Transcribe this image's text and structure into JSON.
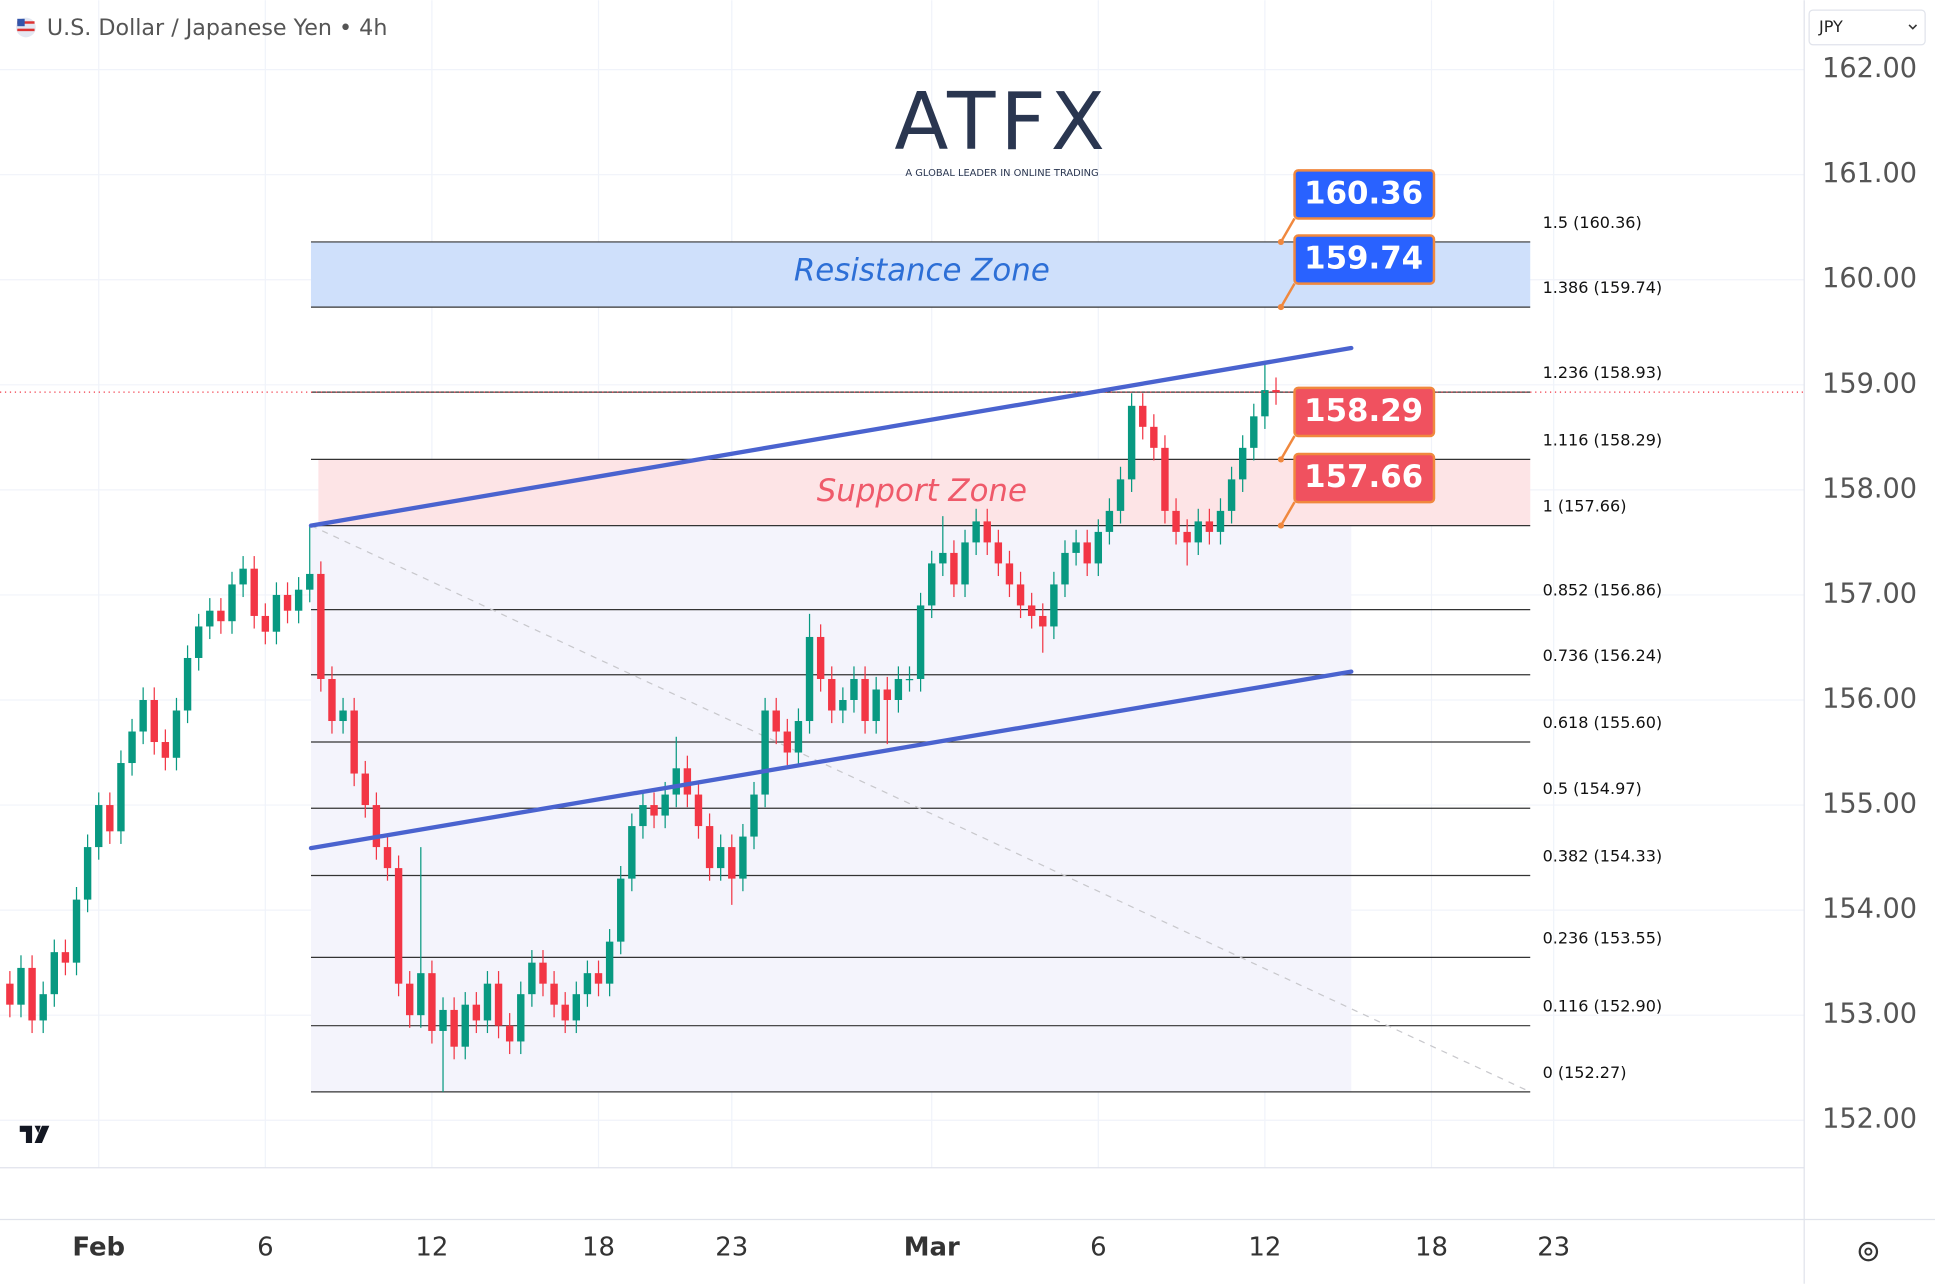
{
  "header": {
    "title": "U.S. Dollar / Japanese Yen • 4h",
    "currency": "JPY"
  },
  "logo": {
    "name": "ATFX",
    "tagline": "A GLOBAL LEADER IN ONLINE TRADING"
  },
  "chart_data": {
    "type": "candlestick",
    "up_color": "#089981",
    "down_color": "#f23645",
    "categories": [
      null,
      null,
      null,
      null,
      null,
      null,
      null,
      null,
      "Feb",
      null,
      null,
      null,
      null,
      null,
      null,
      null,
      null,
      null,
      null,
      null,
      null,
      null,
      null,
      "6",
      null,
      null,
      null,
      null,
      null,
      null,
      null,
      null,
      null,
      null,
      null,
      null,
      null,
      null,
      "12",
      null,
      null,
      null,
      null,
      null,
      null,
      null,
      null,
      null,
      null,
      null,
      null,
      null,
      null,
      "18",
      null,
      null,
      null,
      null,
      null,
      null,
      null,
      null,
      null,
      null,
      null,
      "23",
      null,
      null,
      null,
      null,
      null,
      null,
      null,
      null,
      null,
      null,
      null,
      null,
      null,
      null,
      null,
      null,
      null,
      "Mar",
      null,
      null,
      null,
      null,
      null,
      null,
      null,
      null,
      null,
      null,
      null,
      null,
      null,
      null,
      "6",
      null,
      null,
      null,
      null,
      null,
      null,
      null,
      null,
      null,
      null,
      null,
      null,
      null,
      null,
      "12",
      null,
      null,
      null,
      null,
      null,
      null,
      null,
      null,
      null,
      null,
      null,
      null,
      null,
      null,
      "18",
      null,
      null,
      null,
      null,
      null,
      null,
      null,
      null,
      null,
      null,
      "23"
    ],
    "open": [
      153.3,
      153.1,
      153.45,
      152.95,
      153.2,
      153.6,
      153.5,
      154.1,
      154.6,
      155.0,
      154.75,
      155.4,
      155.7,
      156.0,
      155.6,
      155.45,
      155.9,
      156.4,
      156.7,
      156.85,
      156.75,
      157.1,
      157.25,
      156.8,
      156.65,
      157.0,
      156.85,
      157.05,
      157.2,
      156.2,
      155.8,
      155.9,
      155.3,
      155.0,
      154.6,
      154.4,
      153.3,
      153.0,
      153.4,
      152.85,
      153.05,
      152.7,
      153.1,
      152.95,
      153.3,
      152.9,
      152.75,
      153.2,
      153.5,
      153.3,
      153.1,
      152.95,
      153.2,
      153.4,
      153.3,
      153.7,
      154.3,
      154.8,
      155.0,
      154.9,
      155.1,
      155.35,
      155.1,
      154.8,
      154.4,
      154.6,
      154.3,
      154.7,
      155.1,
      155.9,
      155.7,
      155.5,
      155.8,
      156.6,
      156.2,
      155.9,
      156.0,
      156.2,
      155.8,
      156.1,
      156.0,
      156.2,
      156.2,
      156.9,
      157.3,
      157.4,
      157.1,
      157.5,
      157.7,
      157.5,
      157.3,
      157.1,
      156.9,
      156.8,
      156.7,
      157.1,
      157.4,
      157.5,
      157.3,
      157.6,
      157.8,
      158.1,
      158.8,
      158.6,
      158.4,
      157.8,
      157.6,
      157.5,
      157.7,
      157.6,
      157.8,
      158.1,
      158.4,
      158.7,
      158.95,
      null,
      null,
      null,
      null,
      null,
      null,
      null,
      null,
      null,
      null,
      null,
      null,
      null,
      null,
      null,
      null,
      null,
      null,
      null,
      null,
      null,
      null,
      null,
      null,
      null
    ],
    "high": [
      153.42,
      153.57,
      153.57,
      153.32,
      153.72,
      153.72,
      154.22,
      154.72,
      155.12,
      155.12,
      155.52,
      155.82,
      156.12,
      156.12,
      155.72,
      156.02,
      156.52,
      156.82,
      156.97,
      156.97,
      157.22,
      157.37,
      157.37,
      156.92,
      157.12,
      157.12,
      157.17,
      157.66,
      157.32,
      156.32,
      156.02,
      156.02,
      155.42,
      155.12,
      154.72,
      154.52,
      153.42,
      154.6,
      153.52,
      153.17,
      153.17,
      153.22,
      153.22,
      153.42,
      153.42,
      153.02,
      153.32,
      153.62,
      153.62,
      153.42,
      153.22,
      153.32,
      153.52,
      153.52,
      153.82,
      154.42,
      154.92,
      155.12,
      155.12,
      155.22,
      155.65,
      155.47,
      155.22,
      154.92,
      154.72,
      154.72,
      154.82,
      155.22,
      156.02,
      156.02,
      155.82,
      155.92,
      156.82,
      156.72,
      156.32,
      156.12,
      156.32,
      156.32,
      156.22,
      156.22,
      156.32,
      156.32,
      157.02,
      157.42,
      157.75,
      157.52,
      157.62,
      157.82,
      157.82,
      157.62,
      157.42,
      157.22,
      157.02,
      156.92,
      157.22,
      157.52,
      157.62,
      157.62,
      157.72,
      157.92,
      158.22,
      158.92,
      158.92,
      158.72,
      158.52,
      157.92,
      157.72,
      157.82,
      157.82,
      157.92,
      158.22,
      158.52,
      158.82,
      159.2,
      159.07,
      null,
      null,
      null,
      null,
      null,
      null,
      null,
      null,
      null,
      null,
      null,
      null,
      null,
      null,
      null,
      null,
      null,
      null,
      null,
      null,
      null,
      null,
      null,
      null,
      null
    ],
    "low": [
      152.98,
      152.98,
      152.83,
      152.83,
      153.08,
      153.38,
      153.38,
      153.98,
      154.48,
      154.63,
      154.63,
      155.28,
      155.58,
      155.48,
      155.33,
      155.33,
      155.78,
      156.28,
      156.58,
      156.63,
      156.63,
      156.98,
      156.68,
      156.53,
      156.53,
      156.73,
      156.73,
      156.93,
      156.08,
      155.68,
      155.68,
      155.18,
      154.88,
      154.48,
      154.28,
      153.18,
      152.88,
      152.88,
      152.73,
      152.27,
      152.58,
      152.58,
      152.83,
      152.83,
      152.78,
      152.63,
      152.63,
      153.08,
      153.18,
      152.98,
      152.83,
      152.83,
      153.08,
      153.18,
      153.18,
      153.58,
      154.18,
      154.68,
      154.78,
      154.78,
      154.98,
      154.98,
      154.68,
      154.28,
      154.28,
      154.05,
      154.18,
      154.58,
      154.98,
      155.58,
      155.38,
      155.38,
      155.68,
      156.08,
      155.78,
      155.78,
      155.88,
      155.68,
      155.68,
      155.58,
      155.88,
      156.08,
      156.08,
      156.78,
      157.18,
      156.98,
      156.98,
      157.38,
      157.38,
      157.18,
      156.98,
      156.78,
      156.68,
      156.45,
      156.58,
      156.98,
      157.28,
      157.18,
      157.18,
      157.48,
      157.68,
      157.98,
      158.48,
      158.28,
      157.68,
      157.48,
      157.28,
      157.38,
      157.48,
      157.48,
      157.68,
      157.98,
      158.28,
      158.58,
      158.81,
      null,
      null,
      null,
      null,
      null,
      null,
      null,
      null,
      null,
      null,
      null,
      null,
      null,
      null,
      null,
      null,
      null,
      null,
      null,
      null,
      null,
      null,
      null,
      null,
      null
    ],
    "close": [
      153.1,
      153.45,
      152.95,
      153.2,
      153.6,
      153.5,
      154.1,
      154.6,
      155.0,
      154.75,
      155.4,
      155.7,
      156.0,
      155.6,
      155.45,
      155.9,
      156.4,
      156.7,
      156.85,
      156.75,
      157.1,
      157.25,
      156.8,
      156.65,
      157.0,
      156.85,
      157.05,
      157.2,
      156.2,
      155.8,
      155.9,
      155.3,
      155.0,
      154.6,
      154.4,
      153.3,
      153.0,
      153.4,
      152.85,
      153.05,
      152.7,
      153.1,
      152.95,
      153.3,
      152.9,
      152.75,
      153.2,
      153.5,
      153.3,
      153.1,
      152.95,
      153.2,
      153.4,
      153.3,
      153.7,
      154.3,
      154.8,
      155.0,
      154.9,
      155.1,
      155.35,
      155.1,
      154.8,
      154.4,
      154.6,
      154.3,
      154.7,
      155.1,
      155.9,
      155.7,
      155.5,
      155.8,
      156.6,
      156.2,
      155.9,
      156.0,
      156.2,
      155.8,
      156.1,
      156.0,
      156.2,
      156.2,
      156.9,
      157.3,
      157.4,
      157.1,
      157.5,
      157.7,
      157.5,
      157.3,
      157.1,
      156.9,
      156.8,
      156.7,
      157.1,
      157.4,
      157.5,
      157.3,
      157.6,
      157.8,
      158.1,
      158.8,
      158.6,
      158.4,
      157.8,
      157.6,
      157.5,
      157.7,
      157.6,
      157.8,
      158.1,
      158.4,
      158.7,
      158.95,
      158.93,
      null,
      null,
      null,
      null,
      null,
      null,
      null,
      null,
      null,
      null,
      null,
      null,
      null,
      null,
      null,
      null,
      null,
      null,
      null,
      null,
      null,
      null,
      null,
      null,
      null
    ],
    "ylim": [
      151.56,
      162.66
    ],
    "yticks": [
      {
        "value": 152,
        "label": "152.00"
      },
      {
        "value": 153,
        "label": "153.00"
      },
      {
        "value": 154,
        "label": "154.00"
      },
      {
        "value": 155,
        "label": "155.00"
      },
      {
        "value": 156,
        "label": "156.00"
      },
      {
        "value": 157,
        "label": "157.00"
      },
      {
        "value": 158,
        "label": "158.00"
      },
      {
        "value": 159,
        "label": "159.00"
      },
      {
        "value": 160,
        "label": "160.00"
      },
      {
        "value": 161,
        "label": "161.00"
      },
      {
        "value": 162,
        "label": "162.00"
      }
    ],
    "grid": true,
    "fib_levels": [
      {
        "value": 160.36,
        "label": "1.5 (160.36)"
      },
      {
        "value": 159.74,
        "label": "1.386 (159.74)"
      },
      {
        "value": 158.93,
        "label": "1.236 (158.93)"
      },
      {
        "value": 158.29,
        "label": "1.116 (158.29)"
      },
      {
        "value": 157.66,
        "label": "1 (157.66)"
      },
      {
        "value": 156.86,
        "label": "0.852 (156.86)"
      },
      {
        "value": 156.24,
        "label": "0.736 (156.24)"
      },
      {
        "value": 155.6,
        "label": "0.618 (155.60)"
      },
      {
        "value": 154.97,
        "label": "0.5 (154.97)"
      },
      {
        "value": 154.33,
        "label": "0.382 (154.33)"
      },
      {
        "value": 153.55,
        "label": "0.236 (153.55)"
      },
      {
        "value": 152.9,
        "label": "0.116 (152.90)"
      },
      {
        "value": 152.27,
        "label": "0 (152.27)"
      }
    ],
    "zones": [
      {
        "label": "Resistance Zone",
        "range": [
          159.74,
          160.36
        ],
        "color": "#cfe0fb",
        "text_color": "#2d6fd6"
      },
      {
        "label": "Support Zone",
        "range": [
          157.66,
          158.29
        ],
        "color": "#fde4e6",
        "text_color": "#ef5a6a"
      }
    ],
    "channel": [
      {
        "y": [
          157.66,
          159.35
        ]
      },
      {
        "y": [
          154.59,
          156.27
        ]
      }
    ],
    "channel_color": "#4a63cf",
    "callouts": [
      {
        "value": 160.36,
        "color": "#2962ff"
      },
      {
        "value": 159.74,
        "color": "#2962ff"
      },
      {
        "value": 158.29,
        "color": "#f0515f"
      },
      {
        "value": 157.66,
        "color": "#f0515f"
      }
    ]
  }
}
